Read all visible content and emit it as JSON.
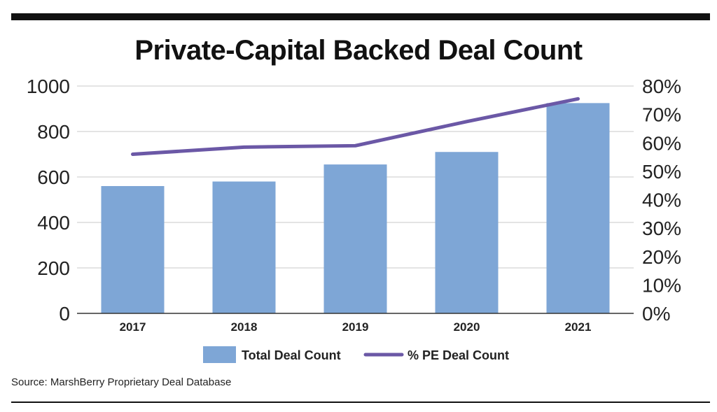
{
  "chart_data": {
    "type": "bar",
    "title": "Private-Capital Backed Deal Count",
    "categories": [
      "2017",
      "2018",
      "2019",
      "2020",
      "2021"
    ],
    "series": [
      {
        "name": "Total Deal Count",
        "type": "bar",
        "axis": "left",
        "color": "#7ea6d6",
        "values": [
          560,
          580,
          655,
          710,
          925
        ]
      },
      {
        "name": "% PE Deal Count",
        "type": "line",
        "axis": "right",
        "color": "#6b58a6",
        "values": [
          56,
          58.5,
          59,
          67.5,
          75.5
        ]
      }
    ],
    "ylim": [
      0,
      1000
    ],
    "y_ticks": [
      "0",
      "200",
      "400",
      "600",
      "800",
      "1000"
    ],
    "y2lim": [
      0,
      80
    ],
    "y2_ticks": [
      "0%",
      "10%",
      "20%",
      "30%",
      "40%",
      "50%",
      "60%",
      "70%",
      "80%"
    ],
    "grid": true,
    "legend_position": "bottom",
    "source": "Source: MarshBerry Proprietary Deal Database"
  }
}
